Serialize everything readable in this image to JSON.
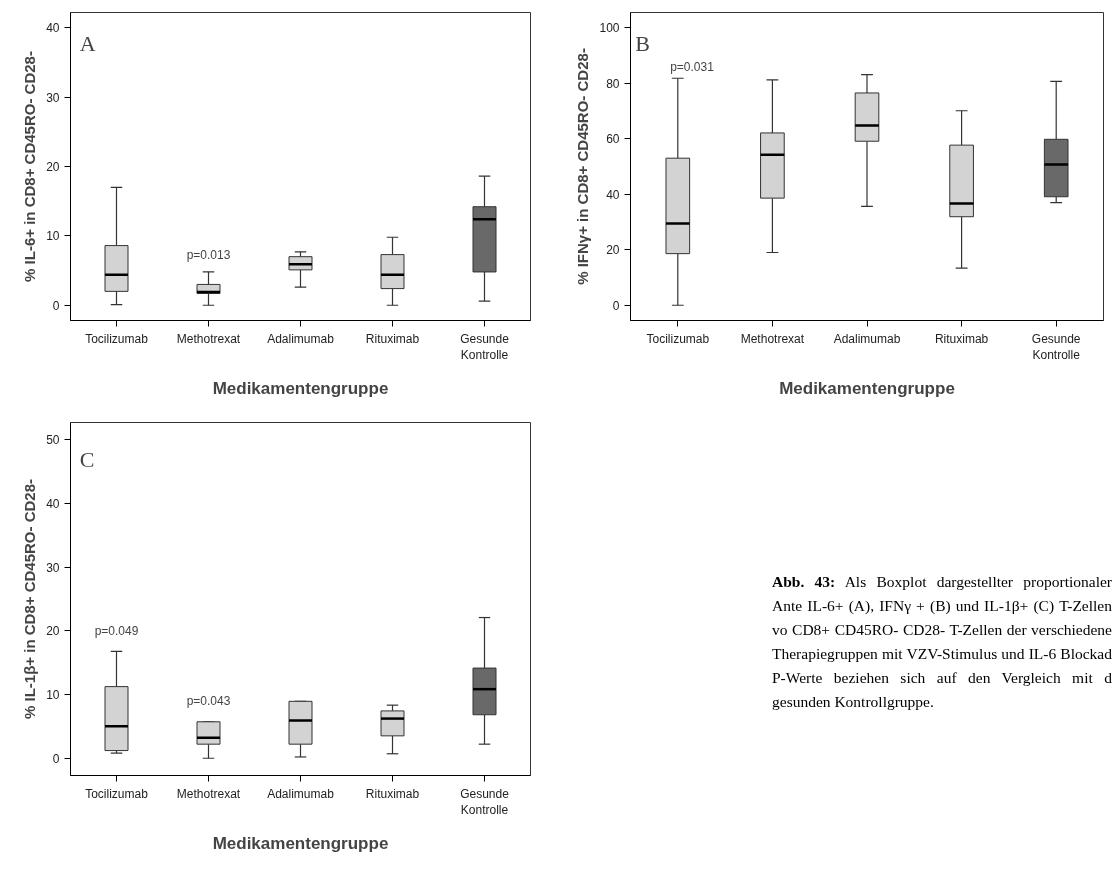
{
  "chart_data": [
    {
      "type": "box",
      "ylabel": "% IL-6+ in CD8+ CD45RO- CD28-",
      "xlabel": "Medikamentengruppe",
      "categories": [
        "Tocilizumab",
        "Methotrexat",
        "Adalimumab",
        "Rituximab",
        "Gesunde\nKontrolle"
      ],
      "colors": [
        "#d3d3d3",
        "#d3d3d3",
        "#d3d3d3",
        "#d3d3d3",
        "#696969"
      ],
      "boxes": [
        {
          "low": 0.1,
          "q1": 2.0,
          "median": 4.4,
          "q3": 8.6,
          "high": 17.0
        },
        {
          "low": 0,
          "q1": 1.7,
          "median": 1.9,
          "q3": 3.0,
          "high": 4.8
        },
        {
          "low": 2.6,
          "q1": 5.1,
          "median": 5.9,
          "q3": 7.0,
          "high": 7.7
        },
        {
          "low": 0,
          "q1": 2.4,
          "median": 4.4,
          "q3": 7.3,
          "high": 9.8
        },
        {
          "low": 0.6,
          "q1": 4.8,
          "median": 12.4,
          "q3": 14.2,
          "high": 18.6
        }
      ],
      "ylim": [
        -2.2,
        42.2
      ],
      "yticks": [
        0,
        10,
        20,
        30,
        40
      ],
      "grid": false,
      "annotations": [
        "A",
        "p=0.013"
      ]
    },
    {
      "type": "box",
      "ylabel": "% IFNγ+ in CD8+ CD45RO- CD28-",
      "xlabel": "Medikamentengruppe",
      "categories": [
        "Tocilizumab",
        "Methotrexat",
        "Adalimumab",
        "Rituximab",
        "Gesunde\nKontrolle"
      ],
      "colors": [
        "#d3d3d3",
        "#d3d3d3",
        "#d3d3d3",
        "#d3d3d3",
        "#696969"
      ],
      "boxes": [
        {
          "low": 0,
          "q1": 18.6,
          "median": 29.5,
          "q3": 53.0,
          "high": 81.8
        },
        {
          "low": 19.0,
          "q1": 38.6,
          "median": 54.2,
          "q3": 62.1,
          "high": 81.2
        },
        {
          "low": 35.6,
          "q1": 59.1,
          "median": 64.8,
          "q3": 76.5,
          "high": 83.1
        },
        {
          "low": 13.4,
          "q1": 31.9,
          "median": 36.7,
          "q3": 57.7,
          "high": 70.1
        },
        {
          "low": 37.0,
          "q1": 39.1,
          "median": 50.7,
          "q3": 59.8,
          "high": 80.7
        }
      ],
      "ylim": [
        -5.5,
        105.5
      ],
      "yticks": [
        0,
        20,
        40,
        60,
        80,
        100
      ],
      "grid": false,
      "annotations": [
        "B",
        "p=0.031"
      ]
    },
    {
      "type": "box",
      "ylabel": "% IL-1β+ in CD8+ CD45RO- CD28-",
      "xlabel": "Medikamentengruppe",
      "categories": [
        "Tocilizumab",
        "Methotrexat",
        "Adalimumab",
        "Rituximab",
        "Gesunde\nKontrolle"
      ],
      "colors": [
        "#d3d3d3",
        "#d3d3d3",
        "#d3d3d3",
        "#d3d3d3",
        "#696969"
      ],
      "boxes": [
        {
          "low": 0.9,
          "q1": 1.3,
          "median": 5.1,
          "q3": 11.3,
          "high": 16.8
        },
        {
          "low": 0.1,
          "q1": 2.3,
          "median": 3.3,
          "q3": 5.8,
          "high": 5.8
        },
        {
          "low": 0.3,
          "q1": 2.3,
          "median": 6.0,
          "q3": 9.0,
          "high": 9.0
        },
        {
          "low": 0.8,
          "q1": 3.6,
          "median": 6.3,
          "q3": 7.5,
          "high": 8.4
        },
        {
          "low": 2.3,
          "q1": 6.9,
          "median": 10.9,
          "q3": 14.2,
          "high": 22.1
        }
      ],
      "ylim": [
        -2.6,
        52.6
      ],
      "yticks": [
        0,
        10,
        20,
        30,
        40,
        50
      ],
      "grid": false,
      "annotations": [
        "C",
        "p=0.049",
        "p=0.043"
      ]
    },
    {
      "type": "other",
      "annotations": [
        "Abb. 43:",
        "Als Boxplot dargestellter proportionaler Ante IL-6+ (A), IFNγ + (B) und  IL-1β+ (C) T-Zellen vo CD8+ CD45RO- CD28- T-Zellen der verschiedene Therapiegruppen mit VZV-Stimulus und IL-6 Blockad P-Werte beziehen sich auf den Vergleich mit d gesunden Kontrollgruppe."
      ]
    }
  ]
}
